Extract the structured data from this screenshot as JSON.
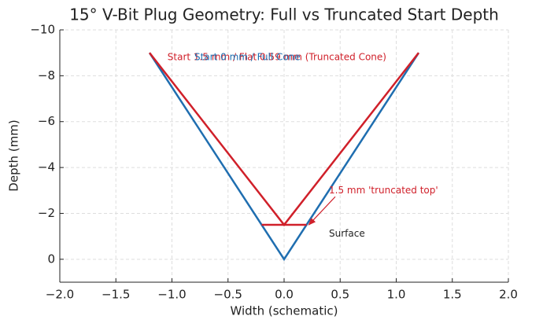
{
  "chart_data": {
    "type": "line",
    "title": "15° V-Bit Plug Geometry: Full vs Truncated Start Depth",
    "xlabel": "Width (schematic)",
    "ylabel": "Depth (mm)",
    "xlim": [
      -2,
      2
    ],
    "xticks": [
      {
        "value": -2,
        "label": "−2.0"
      },
      {
        "value": -1.5,
        "label": "−1.5"
      },
      {
        "value": -1,
        "label": "−1.0"
      },
      {
        "value": -0.5,
        "label": "−0.5"
      },
      {
        "value": 0,
        "label": "0.0"
      },
      {
        "value": 0.5,
        "label": "0.5"
      },
      {
        "value": 1,
        "label": "1.0"
      },
      {
        "value": 1.5,
        "label": "1.5"
      },
      {
        "value": 2,
        "label": "2.0"
      }
    ],
    "ylim": [
      1,
      -10
    ],
    "yticks": [
      0,
      {
        "value": -2,
        "label": "−2"
      },
      {
        "value": -4,
        "label": "−4"
      },
      {
        "value": -6,
        "label": "−6"
      },
      {
        "value": -8,
        "label": "−8"
      },
      {
        "value": -10,
        "label": "−10"
      }
    ],
    "grid": true,
    "series": [
      {
        "color": "#1f6eb0",
        "x": [
          -1.2,
          0,
          1.2
        ],
        "values": [
          -9,
          0,
          -9
        ]
      },
      {
        "color": "#d0202a",
        "x": [
          -1.2,
          0,
          1.2
        ],
        "values": [
          -9,
          -1.5,
          -9
        ]
      },
      {
        "color": "#d0202a",
        "x": [
          -0.2,
          0.2
        ],
        "values": [
          -1.5,
          -1.5
        ]
      }
    ],
    "annotations": [
      {
        "text": "Start 1.5 mm / Flat 0.59 mm (Truncated Cone)",
        "color": "#d0202a",
        "x": -1.04,
        "y": -8.8
      },
      {
        "text": "Start 0 mm / Full Cone",
        "color": "#1f6eb0",
        "x": -0.8,
        "y": -8.8
      },
      {
        "text": "1.5 mm 'truncated top'",
        "color": "#d0202a",
        "x": 0.4,
        "y": -3,
        "arrow_x": 0.22,
        "arrow_y": -1.5
      },
      {
        "text": "Surface",
        "color": "#222222",
        "x": 0.4,
        "y": -1.1
      }
    ]
  }
}
